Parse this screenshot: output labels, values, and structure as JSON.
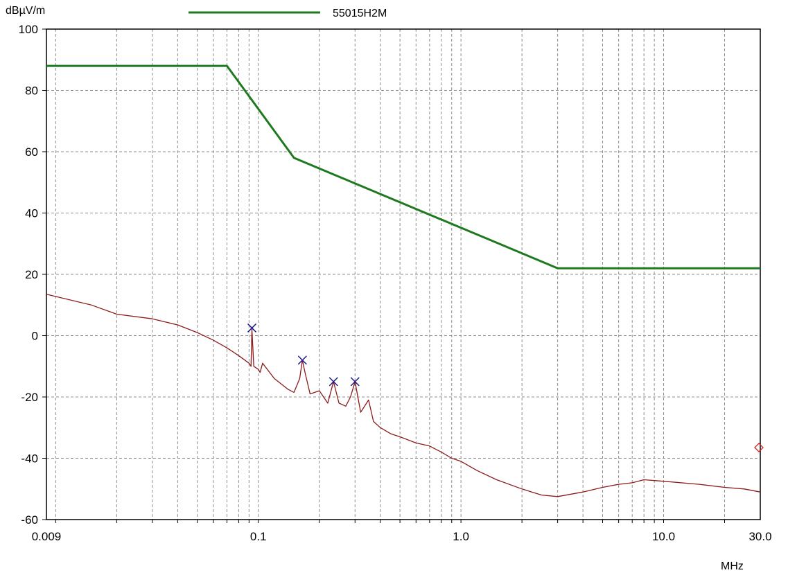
{
  "chart_data": {
    "type": "line",
    "ylabel": "dBµV/m",
    "xlabel": "MHz",
    "x_scale": "log",
    "xlim": [
      0.009,
      30.0
    ],
    "ylim": [
      -60,
      100
    ],
    "grid": true,
    "legend_position": "top",
    "x_tick_labels": [
      "0.009",
      "0.1",
      "1.0",
      "10.0",
      "30.0"
    ],
    "x_ticks": [
      0.009,
      0.1,
      1.0,
      10.0,
      30.0
    ],
    "y_ticks": [
      -60,
      -40,
      -20,
      0,
      20,
      40,
      60,
      80,
      100
    ],
    "y_tick_labels": [
      "-60",
      "-40",
      "-20",
      "0",
      "20",
      "40",
      "60",
      "80",
      "100"
    ],
    "colors": {
      "limit": "#1f7a1f",
      "measurement": "#8b1a1a",
      "marker": "#1a1a8c",
      "end_marker": "#d02020",
      "grid": "#8c8c8c"
    },
    "series": [
      {
        "name": "55015H2M",
        "role": "limit",
        "x": [
          0.009,
          0.07,
          0.15,
          3.0,
          30.0
        ],
        "y": [
          88,
          88,
          58,
          22,
          22
        ]
      },
      {
        "role": "measurement",
        "x": [
          0.009,
          0.015,
          0.02,
          0.03,
          0.04,
          0.05,
          0.06,
          0.07,
          0.08,
          0.09,
          0.092,
          0.093,
          0.095,
          0.1,
          0.102,
          0.105,
          0.12,
          0.14,
          0.15,
          0.16,
          0.165,
          0.17,
          0.18,
          0.2,
          0.22,
          0.235,
          0.25,
          0.27,
          0.285,
          0.3,
          0.32,
          0.35,
          0.37,
          0.4,
          0.45,
          0.5,
          0.6,
          0.7,
          0.8,
          0.9,
          1.0,
          1.2,
          1.5,
          2.0,
          2.5,
          3.0,
          4.0,
          5.0,
          6.0,
          7.0,
          8.0,
          10.0,
          15.0,
          20.0,
          25.0,
          30.0
        ],
        "y": [
          13.5,
          10,
          7,
          5.5,
          3.5,
          1,
          -1.5,
          -4,
          -6.5,
          -9,
          -10,
          2,
          -10,
          -11,
          -12,
          -9,
          -14,
          -17.5,
          -18.5,
          -14,
          -8,
          -12,
          -19,
          -18,
          -22,
          -15,
          -22,
          -23,
          -20,
          -15,
          -25,
          -21,
          -28,
          -30,
          -32,
          -33,
          -35,
          -36,
          -38,
          -40,
          -41,
          -44,
          -47,
          -50,
          -52,
          -52.5,
          -51,
          -49.5,
          -48.5,
          -48,
          -47,
          -47.5,
          -48.5,
          -49.5,
          -50,
          -51
        ]
      }
    ],
    "markers": [
      {
        "x": 0.093,
        "y": 2.5
      },
      {
        "x": 0.165,
        "y": -8
      },
      {
        "x": 0.235,
        "y": -15
      },
      {
        "x": 0.3,
        "y": -15
      }
    ],
    "end_marker": {
      "x": 30.0,
      "y": -36.5
    }
  }
}
